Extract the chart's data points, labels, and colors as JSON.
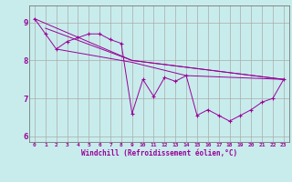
{
  "xlabel": "Windchill (Refroidissement éolien,°C)",
  "ylabel": "",
  "bg_color": "#c8ecec",
  "line_color": "#990099",
  "grid_color": "#aaaaaa",
  "xlim": [
    -0.5,
    23.5
  ],
  "ylim": [
    5.85,
    9.45
  ],
  "yticks": [
    6,
    7,
    8,
    9
  ],
  "xticks": [
    0,
    1,
    2,
    3,
    4,
    5,
    6,
    7,
    8,
    9,
    10,
    11,
    12,
    13,
    14,
    15,
    16,
    17,
    18,
    19,
    20,
    21,
    22,
    23
  ],
  "series": [
    [
      0,
      9.1
    ],
    [
      1,
      8.7
    ],
    [
      2,
      8.3
    ],
    [
      3,
      8.5
    ],
    [
      4,
      8.6
    ],
    [
      5,
      8.7
    ],
    [
      6,
      8.7
    ],
    [
      7,
      8.55
    ],
    [
      8,
      8.45
    ],
    [
      9,
      6.6
    ],
    [
      10,
      7.5
    ],
    [
      11,
      7.05
    ],
    [
      12,
      7.55
    ],
    [
      13,
      7.45
    ],
    [
      14,
      7.6
    ],
    [
      15,
      6.55
    ],
    [
      16,
      6.7
    ],
    [
      17,
      6.55
    ],
    [
      18,
      6.4
    ],
    [
      19,
      6.55
    ],
    [
      20,
      6.7
    ],
    [
      21,
      6.9
    ],
    [
      22,
      7.0
    ],
    [
      23,
      7.5
    ]
  ],
  "series2": [
    [
      0,
      9.1
    ],
    [
      9,
      8.0
    ],
    [
      23,
      7.5
    ]
  ],
  "series3": [
    [
      1,
      8.85
    ],
    [
      9,
      8.0
    ],
    [
      23,
      7.5
    ]
  ],
  "series4": [
    [
      2,
      8.3
    ],
    [
      9,
      7.95
    ],
    [
      14,
      7.6
    ],
    [
      23,
      7.5
    ]
  ]
}
